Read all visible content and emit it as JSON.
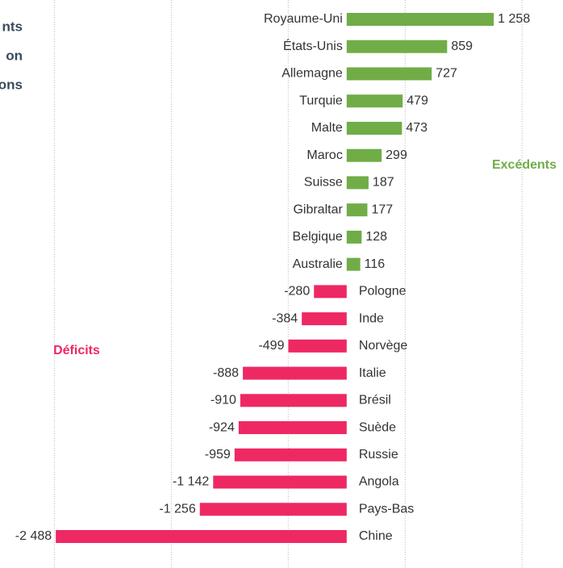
{
  "chart_data": {
    "type": "bar",
    "orientation": "horizontal",
    "title_lines": [
      "nts",
      "on",
      "ons"
    ],
    "categories": [
      "Royaume-Uni",
      "États-Unis",
      "Allemagne",
      "Turquie",
      "Malte",
      "Maroc",
      "Suisse",
      "Gibraltar",
      "Belgique",
      "Australie",
      "Pologne",
      "Inde",
      "Norvège",
      "Italie",
      "Brésil",
      "Suède",
      "Russie",
      "Angola",
      "Pays-Bas",
      "Chine"
    ],
    "values": [
      1258,
      859,
      727,
      479,
      473,
      299,
      187,
      177,
      128,
      116,
      -280,
      -384,
      -499,
      -888,
      -910,
      -924,
      -959,
      -1142,
      -1256,
      -2488
    ],
    "value_labels": [
      "1 258",
      "859",
      "727",
      "479",
      "473",
      "299",
      "187",
      "177",
      "128",
      "116",
      "-280",
      "-384",
      "-499",
      "-888",
      "-910",
      "-924",
      "-959",
      "-1 142",
      "-1 256",
      "-2 488"
    ],
    "positive_color": "#70ad47",
    "negative_color": "#ee2863",
    "annotations": [
      {
        "text": "Excédents",
        "color": "#70ad47"
      },
      {
        "text": "Déficits",
        "color": "#ee2863"
      }
    ],
    "xlim": [
      -2965,
      1850
    ],
    "xticks": [
      -2500,
      -1500,
      -500,
      500,
      1500
    ],
    "grid": true
  }
}
